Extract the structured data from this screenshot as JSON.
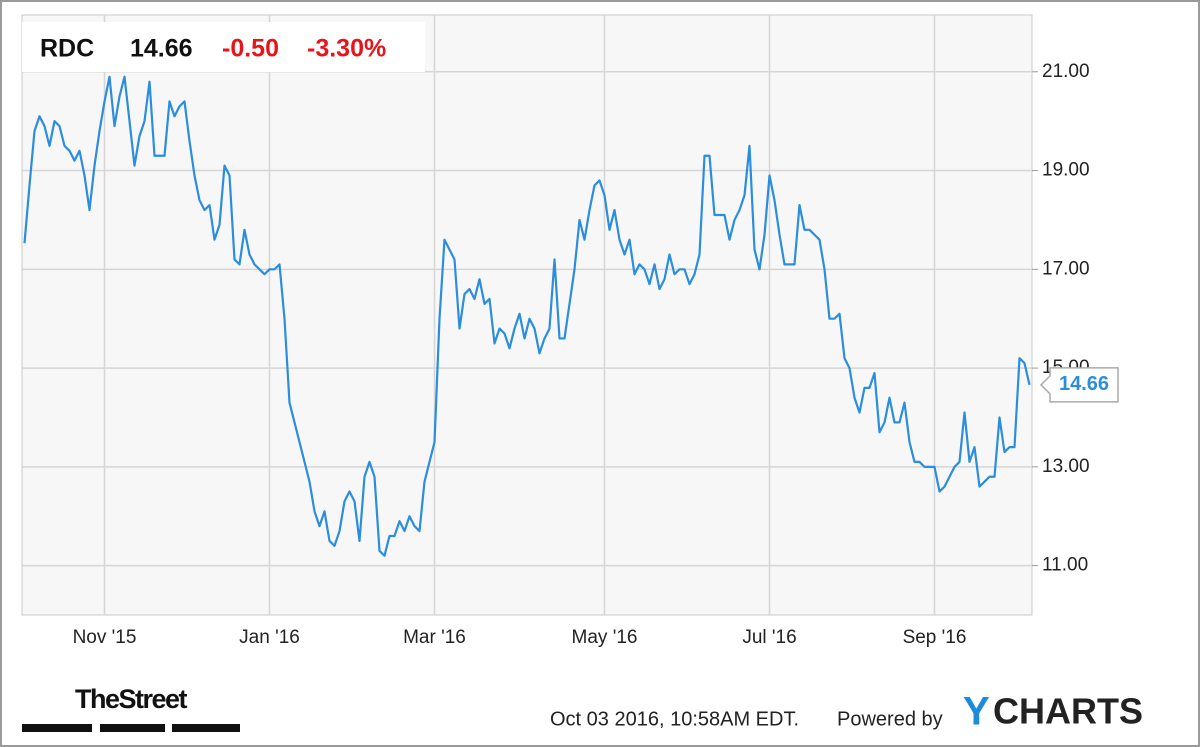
{
  "chart_data": {
    "type": "line",
    "header": {
      "symbol": "RDC",
      "price": "14.66",
      "change": "-0.50",
      "change_pct": "-3.30%"
    },
    "footer": {
      "brand": "TheStreet",
      "timestamp": "Oct 03 2016, 10:58AM EDT.",
      "powered": "Powered by",
      "logo_y": "Y",
      "logo_rest": "CHARTS"
    },
    "categories": [
      null,
      null,
      null,
      null,
      null,
      null,
      null,
      null,
      null,
      null,
      null,
      null,
      null,
      null,
      null,
      null,
      "Nov '15",
      null,
      null,
      null,
      null,
      null,
      null,
      null,
      null,
      null,
      null,
      null,
      null,
      null,
      null,
      null,
      null,
      null,
      null,
      null,
      null,
      null,
      null,
      null,
      null,
      null,
      null,
      null,
      null,
      null,
      null,
      null,
      null,
      "Jan '16",
      null,
      null,
      null,
      null,
      null,
      null,
      null,
      null,
      null,
      null,
      null,
      null,
      null,
      null,
      null,
      null,
      null,
      null,
      null,
      null,
      null,
      null,
      null,
      null,
      null,
      null,
      null,
      null,
      null,
      null,
      null,
      null,
      "Mar '16",
      null,
      null,
      null,
      null,
      null,
      null,
      null,
      null,
      null,
      null,
      null,
      null,
      null,
      null,
      null,
      null,
      null,
      null,
      null,
      null,
      null,
      null,
      null,
      null,
      null,
      null,
      null,
      null,
      null,
      null,
      null,
      null,
      null,
      "May '16",
      null,
      null,
      null,
      null,
      null,
      null,
      null,
      null,
      null,
      null,
      null,
      null,
      null,
      null,
      null,
      null,
      null,
      null,
      null,
      null,
      null,
      null,
      null,
      null,
      null,
      null,
      null,
      null,
      null,
      null,
      null,
      null,
      "Jul '16",
      null,
      null,
      null,
      null,
      null,
      null,
      null,
      null,
      null,
      null,
      null,
      null,
      null,
      null,
      null,
      null,
      null,
      null,
      null,
      null,
      null,
      null,
      null,
      null,
      null,
      null,
      null,
      null,
      null,
      null,
      null,
      null,
      "Sep '16",
      null,
      null,
      null,
      null,
      null,
      null,
      null,
      null,
      null,
      null,
      null,
      null,
      null,
      null,
      null,
      null,
      null,
      null,
      null
    ],
    "series": [
      {
        "color": "#2b8ddd",
        "values": [
          17.53,
          18.7,
          19.8,
          20.1,
          19.9,
          19.5,
          20,
          19.9,
          19.5,
          19.4,
          19.2,
          19.4,
          18.9,
          18.2,
          19.1,
          19.8,
          20.4,
          20.9,
          19.9,
          20.5,
          20.9,
          20,
          19.1,
          19.7,
          20,
          20.8,
          19.3,
          19.3,
          19.3,
          20.4,
          20.1,
          20.3,
          20.4,
          19.6,
          18.9,
          18.4,
          18.2,
          18.3,
          17.6,
          17.9,
          19.1,
          18.9,
          17.2,
          17.1,
          17.8,
          17.3,
          17.1,
          17,
          16.9,
          17,
          17,
          17.1,
          16,
          14.3,
          13.9,
          13.5,
          13.1,
          12.7,
          12.1,
          11.8,
          12.1,
          11.5,
          11.4,
          11.7,
          12.3,
          12.5,
          12.3,
          11.5,
          12.8,
          13.1,
          12.8,
          11.3,
          11.2,
          11.6,
          11.6,
          11.9,
          11.7,
          12,
          11.8,
          11.7,
          12.7,
          13.1,
          13.5,
          16,
          17.6,
          17.4,
          17.2,
          15.8,
          16.5,
          16.6,
          16.4,
          16.8,
          16.3,
          16.4,
          15.5,
          15.8,
          15.7,
          15.4,
          15.8,
          16.1,
          15.6,
          16,
          15.8,
          15.3,
          15.6,
          15.8,
          17.2,
          15.6,
          15.6,
          16.3,
          17,
          18,
          17.6,
          18.2,
          18.7,
          18.8,
          18.5,
          17.8,
          18.2,
          17.6,
          17.3,
          17.6,
          16.9,
          17.1,
          17,
          16.7,
          17.1,
          16.6,
          16.8,
          17.3,
          16.9,
          17,
          17,
          16.7,
          16.9,
          17.3,
          19.3,
          19.3,
          18.1,
          18.1,
          18.1,
          17.6,
          18,
          18.2,
          18.5,
          19.5,
          17.4,
          17,
          17.7,
          18.9,
          18.4,
          17.7,
          17.1,
          17.1,
          17.1,
          18.3,
          17.8,
          17.8,
          17.7,
          17.6,
          17,
          16,
          16,
          16.1,
          15.2,
          15,
          14.4,
          14.1,
          14.6,
          14.6,
          14.9,
          13.7,
          13.9,
          14.4,
          13.9,
          13.9,
          14.3,
          13.5,
          13.1,
          13.1,
          13,
          13,
          13,
          12.5,
          12.6,
          12.8,
          13,
          13.1,
          14.1,
          13.1,
          13.4,
          12.6,
          12.7,
          12.8,
          12.8,
          14,
          13.3,
          13.4,
          13.4,
          15.2,
          15.1,
          14.66
        ]
      }
    ],
    "ylim": [
      10,
      22.15
    ],
    "yticks": [
      {
        "value": 11,
        "label": "11.00"
      },
      {
        "value": 13,
        "label": "13.00"
      },
      {
        "value": 15,
        "label": "15.00"
      },
      {
        "value": 17,
        "label": "17.00"
      },
      {
        "value": 19,
        "label": "19.00"
      },
      {
        "value": 21,
        "label": "21.00"
      }
    ],
    "grid": true
  }
}
